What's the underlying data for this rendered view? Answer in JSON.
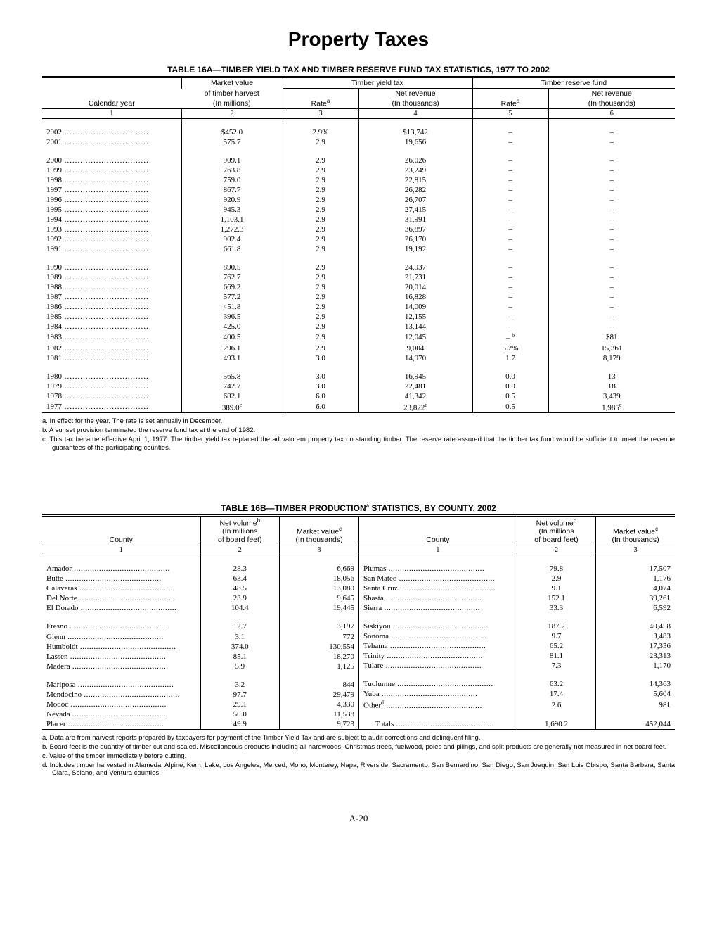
{
  "page_title": "Property Taxes",
  "page_number": "A-20",
  "table16a": {
    "title": "TABLE 16A—TIMBER YIELD TAX AND TIMBER RESERVE FUND TAX STATISTICS, 1977 TO 2002",
    "headers": {
      "calendar_year": "Calendar year",
      "market_value_top": "Market value",
      "market_value_sub": "of timber harvest",
      "market_value_unit": "(In millions)",
      "timber_yield": "Timber yield tax",
      "timber_reserve": "Timber reserve fund",
      "rate": "Rate",
      "rate_sup": "a",
      "net_revenue": "Net revenue",
      "net_revenue_unit": "(In thousands)"
    },
    "col_nums": [
      "1",
      "2",
      "3",
      "4",
      "5",
      "6"
    ],
    "rows": [
      {
        "year": "2002",
        "mv": "$452.0",
        "rate1": "2.9%",
        "rev1": "$13,742",
        "rate2": "–",
        "rev2": "–"
      },
      {
        "year": "2001",
        "mv": "575.7",
        "rate1": "2.9",
        "rev1": "19,656",
        "rate2": "–",
        "rev2": "–"
      },
      {
        "gap": true
      },
      {
        "year": "2000",
        "mv": "909.1",
        "rate1": "2.9",
        "rev1": "26,026",
        "rate2": "–",
        "rev2": "–"
      },
      {
        "year": "1999",
        "mv": "763.8",
        "rate1": "2.9",
        "rev1": "23,249",
        "rate2": "–",
        "rev2": "–"
      },
      {
        "year": "1998",
        "mv": "759.0",
        "rate1": "2.9",
        "rev1": "22,815",
        "rate2": "–",
        "rev2": "–"
      },
      {
        "year": "1997",
        "mv": "867.7",
        "rate1": "2.9",
        "rev1": "26,282",
        "rate2": "–",
        "rev2": "–"
      },
      {
        "year": "1996",
        "mv": "920.9",
        "rate1": "2.9",
        "rev1": "26,707",
        "rate2": "–",
        "rev2": "–"
      },
      {
        "year": "1995",
        "mv": "945.3",
        "rate1": "2.9",
        "rev1": "27,415",
        "rate2": "–",
        "rev2": "–"
      },
      {
        "year": "1994",
        "mv": "1,103.1",
        "rate1": "2.9",
        "rev1": "31,991",
        "rate2": "–",
        "rev2": "–"
      },
      {
        "year": "1993",
        "mv": "1,272.3",
        "rate1": "2.9",
        "rev1": "36,897",
        "rate2": "–",
        "rev2": "–"
      },
      {
        "year": "1992",
        "mv": "902.4",
        "rate1": "2.9",
        "rev1": "26,170",
        "rate2": "–",
        "rev2": "–"
      },
      {
        "year": "1991",
        "mv": "661.8",
        "rate1": "2.9",
        "rev1": "19,192",
        "rate2": "–",
        "rev2": "–"
      },
      {
        "gap": true
      },
      {
        "year": "1990",
        "mv": "890.5",
        "rate1": "2.9",
        "rev1": "24,937",
        "rate2": "–",
        "rev2": "–"
      },
      {
        "year": "1989",
        "mv": "762.7",
        "rate1": "2.9",
        "rev1": "21,731",
        "rate2": "–",
        "rev2": "–"
      },
      {
        "year": "1988",
        "mv": "669.2",
        "rate1": "2.9",
        "rev1": "20,014",
        "rate2": "–",
        "rev2": "–"
      },
      {
        "year": "1987",
        "mv": "577.2",
        "rate1": "2.9",
        "rev1": "16,828",
        "rate2": "–",
        "rev2": "–"
      },
      {
        "year": "1986",
        "mv": "451.8",
        "rate1": "2.9",
        "rev1": "14,009",
        "rate2": "–",
        "rev2": "–"
      },
      {
        "year": "1985",
        "mv": "396.5",
        "rate1": "2.9",
        "rev1": "12,155",
        "rate2": "–",
        "rev2": "–"
      },
      {
        "year": "1984",
        "mv": "425.0",
        "rate1": "2.9",
        "rev1": "13,144",
        "rate2": "–",
        "rev2": "–"
      },
      {
        "year": "1983",
        "mv": "400.5",
        "rate1": "2.9",
        "rev1": "12,045",
        "rate2": "–",
        "rate2_sup": "b",
        "rev2": "$81"
      },
      {
        "year": "1982",
        "mv": "296.1",
        "rate1": "2.9",
        "rev1": "9,004",
        "rate2": "5.2%",
        "rev2": "15,361"
      },
      {
        "year": "1981",
        "mv": "493.1",
        "rate1": "3.0",
        "rev1": "14,970",
        "rate2": "1.7",
        "rev2": "8,179"
      },
      {
        "gap": true
      },
      {
        "year": "1980",
        "mv": "565.8",
        "rate1": "3.0",
        "rev1": "16,945",
        "rate2": "0.0",
        "rev2": "13"
      },
      {
        "year": "1979",
        "mv": "742.7",
        "rate1": "3.0",
        "rev1": "22,481",
        "rate2": "0.0",
        "rev2": "18"
      },
      {
        "year": "1978",
        "mv": "682.1",
        "rate1": "6.0",
        "rev1": "41,342",
        "rate2": "0.5",
        "rev2": "3,439"
      },
      {
        "year": "1977",
        "mv": "389.0",
        "mv_sup": "c",
        "rate1": "6.0",
        "rev1": "23,822",
        "rev1_sup": "c",
        "rate2": "0.5",
        "rev2": "1,985",
        "rev2_sup": "c"
      }
    ],
    "footnotes": [
      "a.  In effect for the year. The rate is set annually in December.",
      "b.  A sunset provision terminated the reserve fund tax at the end of 1982.",
      "c.  This tax became effective April 1, 1977. The timber yield tax replaced the ad valorem property tax on standing timber. The reserve rate assured that the timber tax fund would be sufficient to meet the revenue guarantees of the participating counties."
    ]
  },
  "table16b": {
    "title_pre": "TABLE 16B—TIMBER PRODUCTION",
    "title_sup": "a",
    "title_post": " STATISTICS, BY COUNTY, 2002",
    "headers": {
      "county": "County",
      "net_volume": "Net volume",
      "net_volume_sup": "b",
      "net_volume_sub": "(In millions",
      "net_volume_unit": "of board feet)",
      "market_value": "Market value",
      "market_value_sup": "c",
      "market_value_unit": "(In thousands)"
    },
    "col_nums": [
      "1",
      "2",
      "3"
    ],
    "left_rows": [
      {
        "county": "Amador",
        "vol": "28.3",
        "val": "6,669"
      },
      {
        "county": "Butte",
        "vol": "63.4",
        "val": "18,056"
      },
      {
        "county": "Calaveras",
        "vol": "48.5",
        "val": "13,080"
      },
      {
        "county": "Del Norte",
        "vol": "23.9",
        "val": "9,645"
      },
      {
        "county": "El Dorado",
        "vol": "104.4",
        "val": "19,445"
      },
      {
        "gap": true
      },
      {
        "county": "Fresno",
        "vol": "12.7",
        "val": "3,197"
      },
      {
        "county": "Glenn",
        "vol": "3.1",
        "val": "772"
      },
      {
        "county": "Humboldt",
        "vol": "374.0",
        "val": "130,554"
      },
      {
        "county": "Lassen",
        "vol": "85.1",
        "val": "18,270"
      },
      {
        "county": "Madera",
        "vol": "5.9",
        "val": "1,125"
      },
      {
        "gap": true
      },
      {
        "county": "Mariposa",
        "vol": "3.2",
        "val": "844"
      },
      {
        "county": "Mendocino",
        "vol": "97.7",
        "val": "29,479"
      },
      {
        "county": "Modoc",
        "vol": "29.1",
        "val": "4,330"
      },
      {
        "county": "Nevada",
        "vol": "50.0",
        "val": "11,538"
      },
      {
        "county": "Placer",
        "vol": "49.9",
        "val": "9,723"
      }
    ],
    "right_rows": [
      {
        "county": "Plumas",
        "vol": "79.8",
        "val": "17,507"
      },
      {
        "county": "San Mateo",
        "vol": "2.9",
        "val": "1,176"
      },
      {
        "county": "Santa Cruz",
        "vol": "9.1",
        "val": "4,074"
      },
      {
        "county": "Shasta",
        "vol": "152.1",
        "val": "39,261"
      },
      {
        "county": "Sierra",
        "vol": "33.3",
        "val": "6,592"
      },
      {
        "gap": true
      },
      {
        "county": "Siskiyou",
        "vol": "187.2",
        "val": "40,458"
      },
      {
        "county": "Sonoma",
        "vol": "9.7",
        "val": "3,483"
      },
      {
        "county": "Tehama",
        "vol": "65.2",
        "val": "17,336"
      },
      {
        "county": "Trinity",
        "vol": "81.1",
        "val": "23,313"
      },
      {
        "county": "Tulare",
        "vol": "7.3",
        "val": "1,170"
      },
      {
        "gap": true
      },
      {
        "county": "Tuolumne",
        "vol": "63.2",
        "val": "14,363"
      },
      {
        "county": "Yuba",
        "vol": "17.4",
        "val": "5,604"
      },
      {
        "county": "Other",
        "county_sup": "d",
        "vol": "2.6",
        "val": "981"
      },
      {
        "gap": true
      },
      {
        "county": "Totals",
        "indent": true,
        "vol": "1,690.2",
        "val": "452,044"
      }
    ],
    "footnotes": [
      "a.  Data are from harvest reports prepared by taxpayers for payment of the Timber Yield Tax and are subject to audit corrections and delinquent filing.",
      "b.  Board feet is the quantity of timber cut and scaled. Miscellaneous products including all hardwoods, Christmas trees, fuelwood, poles and pilings, and split products are generally not measured in net board feet.",
      "c.  Value of the timber immediately before cutting.",
      "d.  Includes timber harvested in Alameda, Alpine, Kern, Lake, Los Angeles, Merced, Mono, Monterey, Napa, Riverside, Sacramento, San Bernardino, San Diego, San Joaquin, San Luis Obispo, Santa Barbara, Santa Clara, Solano, and Ventura counties."
    ]
  }
}
